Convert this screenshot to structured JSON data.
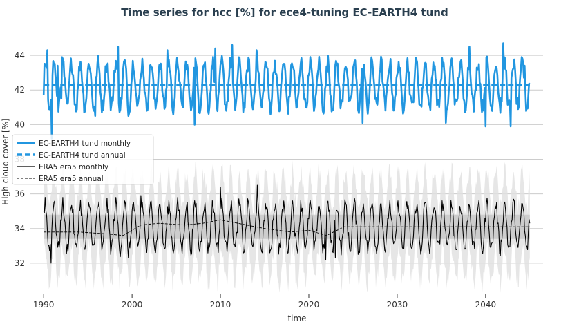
{
  "chart_data": {
    "type": "line",
    "title": "Time series for hcc [%] for ece4-tuning EC-EARTH4 tund",
    "xlabel": "time",
    "ylabel": "High cloud cover [%]",
    "xlim": [
      1988.5,
      2046.5
    ],
    "ylim": [
      30.2,
      45.4
    ],
    "x_ticks": [
      1990,
      2000,
      2010,
      2020,
      2030,
      2040
    ],
    "y_ticks": [
      32,
      34,
      36,
      38,
      40,
      42,
      44
    ],
    "grid": "horizontal",
    "legend_position": "center-left",
    "colors": {
      "model": "#2196e0",
      "obs": "#000000",
      "obs_band": "#d9d9d9",
      "title": "#2a3f4f"
    },
    "series": [
      {
        "name": "EC-EARTH4 tund monthly",
        "style": "solid-thick",
        "seasonal": {
          "mean": 42.3,
          "amplitude": 1.3,
          "years": [
            1990,
            2045
          ]
        },
        "points": [
          [
            1990.0,
            41.7
          ],
          [
            1990.2,
            43.5
          ],
          [
            1990.4,
            44.3
          ],
          [
            1990.7,
            41.0
          ],
          [
            1990.9,
            39.2
          ],
          [
            1991.3,
            42.8
          ],
          [
            1991.6,
            43.4
          ],
          [
            1992.0,
            41.5
          ],
          [
            1995.8,
            40.5
          ],
          [
            1998.4,
            44.5
          ],
          [
            1999.6,
            40.5
          ],
          [
            2004.0,
            44.3
          ],
          [
            2007.1,
            40.0
          ],
          [
            2009.4,
            44.4
          ],
          [
            2011.3,
            44.6
          ],
          [
            2014.1,
            44.3
          ],
          [
            2026.1,
            40.1
          ],
          [
            2035.5,
            40.1
          ],
          [
            2038.2,
            44.5
          ],
          [
            2040.0,
            39.9
          ],
          [
            2042.0,
            44.7
          ],
          [
            2042.8,
            39.9
          ],
          [
            2044.4,
            43.4
          ],
          [
            2045.0,
            42.4
          ]
        ]
      },
      {
        "name": "EC-EARTH4 tund annual",
        "style": "dashed-thick",
        "points": [
          [
            1990,
            42.3
          ],
          [
            2045,
            42.3
          ]
        ]
      },
      {
        "name": "ERA5 era5 monthly",
        "style": "solid-thin",
        "seasonal": {
          "mean": 34.1,
          "amplitude": 1.3,
          "years": [
            1990,
            2045
          ]
        },
        "points": [
          [
            1990.2,
            35.8
          ],
          [
            1990.8,
            32.0
          ],
          [
            1999.6,
            32.3
          ],
          [
            2001.0,
            35.9
          ],
          [
            2010.0,
            36.4
          ],
          [
            2014.2,
            36.5
          ],
          [
            2021.9,
            32.2
          ],
          [
            2023.0,
            32.3
          ],
          [
            2045.0,
            34.3
          ]
        ]
      },
      {
        "name": "ERA5 era5 annual",
        "style": "dashed-thin",
        "points": [
          [
            1990,
            33.8
          ],
          [
            1994,
            33.8
          ],
          [
            1997,
            33.7
          ],
          [
            1999,
            33.6
          ],
          [
            2001,
            34.2
          ],
          [
            2003,
            34.3
          ],
          [
            2006,
            34.2
          ],
          [
            2008,
            34.3
          ],
          [
            2010,
            34.5
          ],
          [
            2012,
            34.3
          ],
          [
            2015,
            34.0
          ],
          [
            2018,
            33.8
          ],
          [
            2020,
            33.9
          ],
          [
            2022,
            33.6
          ],
          [
            2024,
            34.1
          ],
          [
            2045,
            34.1
          ]
        ]
      }
    ],
    "bands": [
      {
        "series": "ERA5 era5 monthly",
        "mean": 34.1,
        "half_width_x": 1.1,
        "years": [
          1990,
          2045
        ]
      },
      {
        "series": "ERA5 era5 annual",
        "mean": 34.1,
        "half_width_x": 0.5,
        "years": [
          1990,
          2045
        ]
      }
    ]
  }
}
